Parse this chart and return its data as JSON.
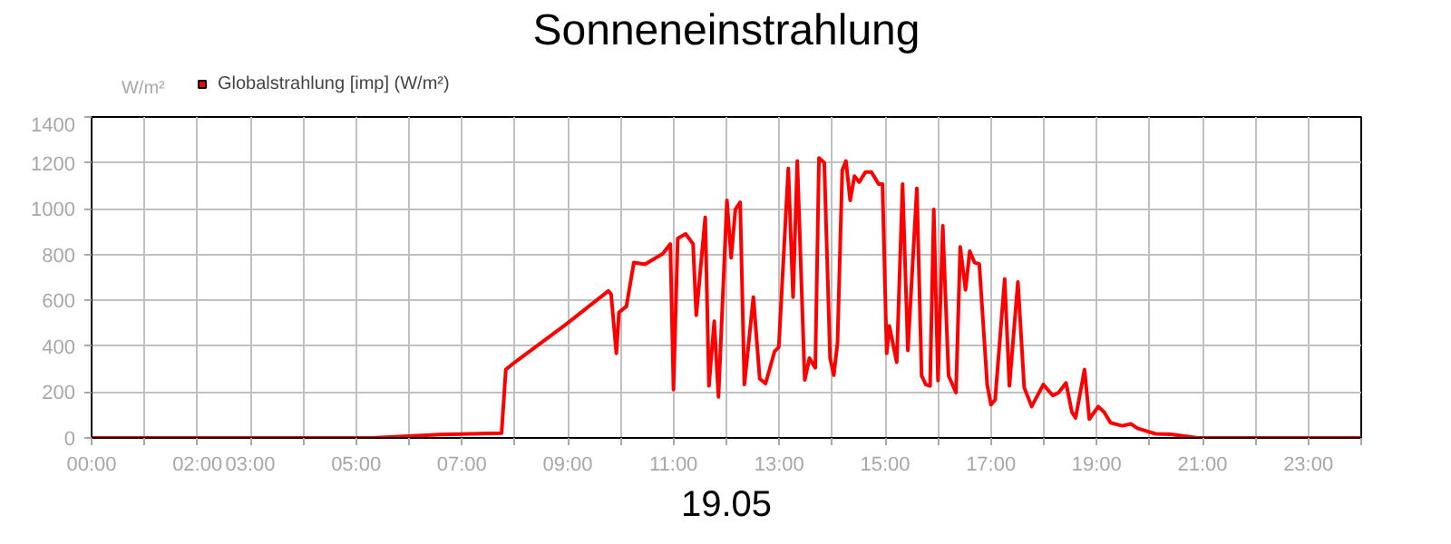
{
  "chart_data": {
    "type": "line",
    "title": "Sonneneinstrahlung",
    "xlabel": "19.05",
    "ylabel": "W/m²",
    "x": [
      0,
      5.3,
      6.6,
      7.75,
      7.83,
      8.0,
      8.97,
      9.77,
      9.82,
      9.92,
      9.97,
      10.11,
      10.25,
      10.46,
      10.8,
      10.94,
      11.0,
      11.08,
      11.23,
      11.37,
      11.43,
      11.6,
      11.67,
      11.77,
      11.85,
      12.01,
      12.09,
      12.17,
      12.26,
      12.34,
      12.51,
      12.63,
      12.74,
      12.91,
      12.99,
      13.17,
      13.26,
      13.34,
      13.48,
      13.57,
      13.68,
      13.75,
      13.85,
      13.96,
      14.03,
      14.1,
      14.19,
      14.26,
      14.34,
      14.42,
      14.51,
      14.63,
      14.74,
      14.88,
      14.95,
      15.03,
      15.08,
      15.22,
      15.33,
      15.43,
      15.6,
      15.69,
      15.77,
      15.85,
      15.92,
      16.0,
      16.09,
      16.2,
      16.34,
      16.42,
      16.52,
      16.6,
      16.69,
      16.78,
      16.93,
      17.0,
      17.08,
      17.26,
      17.35,
      17.51,
      17.63,
      17.77,
      17.99,
      18.17,
      18.28,
      18.42,
      18.53,
      18.6,
      18.77,
      18.86,
      19.03,
      19.14,
      19.26,
      19.48,
      19.65,
      19.77,
      20.11,
      20.4,
      20.91,
      24
    ],
    "series": [
      {
        "name": "Globalstrahlung [imp] (W/m²)",
        "color": "#ff0000",
        "values": [
          0,
          0,
          15,
          21,
          298,
          330,
          496,
          641,
          627,
          369,
          548,
          574,
          765,
          757,
          804,
          846,
          211,
          870,
          890,
          846,
          535,
          962,
          227,
          509,
          179,
          1036,
          786,
          997,
          1028,
          233,
          614,
          258,
          237,
          377,
          396,
          1176,
          614,
          1208,
          253,
          348,
          306,
          1221,
          1200,
          348,
          274,
          413,
          1168,
          1208,
          1036,
          1142,
          1116,
          1160,
          1160,
          1107,
          1107,
          369,
          488,
          330,
          1107,
          382,
          1089,
          271,
          233,
          227,
          997,
          250,
          925,
          271,
          198,
          833,
          646,
          815,
          765,
          759,
          233,
          145,
          166,
          693,
          227,
          680,
          219,
          137,
          233,
          185,
          198,
          240,
          113,
          87,
          298,
          82,
          137,
          113,
          66,
          53,
          61,
          42,
          18,
          16,
          0,
          0
        ]
      }
    ],
    "xlim": [
      0,
      24
    ],
    "ylim": [
      0,
      1400
    ],
    "xticks": [
      {
        "value": 0,
        "label": "00:00"
      },
      {
        "value": 1,
        "label": null
      },
      {
        "value": 2,
        "label": "02:00"
      },
      {
        "value": 3,
        "label": "03:00"
      },
      {
        "value": 4,
        "label": null
      },
      {
        "value": 5,
        "label": "05:00"
      },
      {
        "value": 6,
        "label": null
      },
      {
        "value": 7,
        "label": "07:00"
      },
      {
        "value": 8,
        "label": null
      },
      {
        "value": 9,
        "label": "09:00"
      },
      {
        "value": 10,
        "label": null
      },
      {
        "value": 11,
        "label": "11:00"
      },
      {
        "value": 12,
        "label": null
      },
      {
        "value": 13,
        "label": "13:00"
      },
      {
        "value": 14,
        "label": null
      },
      {
        "value": 15,
        "label": "15:00"
      },
      {
        "value": 16,
        "label": null
      },
      {
        "value": 17,
        "label": "17:00"
      },
      {
        "value": 18,
        "label": null
      },
      {
        "value": 19,
        "label": "19:00"
      },
      {
        "value": 20,
        "label": null
      },
      {
        "value": 21,
        "label": "21:00"
      },
      {
        "value": 22,
        "label": null
      },
      {
        "value": 23,
        "label": "23:00"
      },
      {
        "value": 24,
        "label": null
      }
    ],
    "yticks": [
      0,
      200,
      400,
      600,
      800,
      1000,
      1200,
      1400
    ],
    "grid": true,
    "legend": "top left",
    "line_style": "solid"
  }
}
